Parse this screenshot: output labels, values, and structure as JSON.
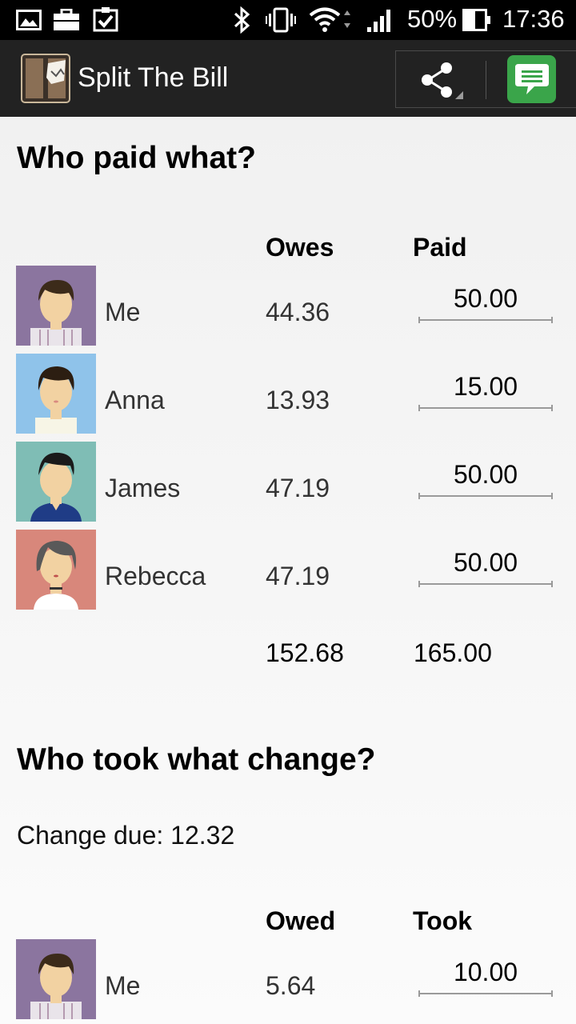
{
  "status_bar": {
    "battery": "50%",
    "time": "17:36",
    "icons": [
      "gallery-icon",
      "briefcase-icon",
      "clipboard-check-icon",
      "bluetooth-icon",
      "vibrate-icon",
      "wifi-icon",
      "signal-icon",
      "battery-icon"
    ]
  },
  "action_bar": {
    "title": "Split The Bill",
    "icons": [
      "app-logo-icon",
      "share-icon",
      "message-icon"
    ]
  },
  "paid_section": {
    "title": "Who paid what?",
    "col_owes": "Owes",
    "col_paid": "Paid",
    "rows": [
      {
        "name": "Me",
        "owes": "44.36",
        "paid": "50.00",
        "avatar_bg": "#8b759f"
      },
      {
        "name": "Anna",
        "owes": "13.93",
        "paid": "15.00",
        "avatar_bg": "#8fc3ea"
      },
      {
        "name": "James",
        "owes": "47.19",
        "paid": "50.00",
        "avatar_bg": "#7fbdb5"
      },
      {
        "name": "Rebecca",
        "owes": "47.19",
        "paid": "50.00",
        "avatar_bg": "#d8877b"
      }
    ],
    "total_owes": "152.68",
    "total_paid": "165.00"
  },
  "change_section": {
    "title": "Who took what change?",
    "change_due": "Change due: 12.32",
    "col_owed": "Owed",
    "col_took": "Took",
    "rows": [
      {
        "name": "Me",
        "owed": "5.64",
        "took": "10.00",
        "avatar_bg": "#8b759f"
      }
    ]
  },
  "colors": {
    "status_bar_bg": "#000000",
    "action_bar_bg": "#222222",
    "message_button_green": "#3aa54a",
    "page_bg": "#f2f2f2"
  }
}
